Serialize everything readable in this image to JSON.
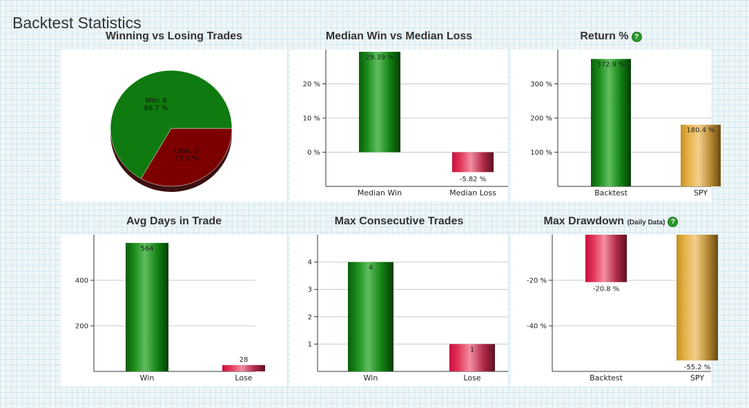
{
  "page_title": "Backtest Statistics",
  "help_glyph": "?",
  "chart_data": [
    {
      "id": "winlose",
      "type": "pie",
      "title": "Winning vs Losing Trades",
      "slices": [
        {
          "label": "Win: 6",
          "pct_label": "66.7 %",
          "value": 66.7,
          "color": "#0f7a0f"
        },
        {
          "label": "Lose: 3",
          "pct_label": "33.3 %",
          "value": 33.3,
          "color": "#7d0000"
        }
      ]
    },
    {
      "id": "median",
      "type": "bar",
      "title": "Median Win vs Median Loss",
      "categories": [
        "Median Win",
        "Median Loss"
      ],
      "values": [
        29.39,
        -5.82
      ],
      "labels": [
        "29.39 %",
        "-5.82 %"
      ],
      "ylim": [
        -10,
        30
      ],
      "yticks": [
        0,
        10,
        20
      ],
      "ytick_labels": [
        "0 %",
        "10 %",
        "20 %"
      ],
      "colors": [
        "green",
        "red"
      ]
    },
    {
      "id": "return",
      "type": "bar",
      "title": "Return %",
      "help": true,
      "categories": [
        "Backtest",
        "SPY"
      ],
      "values": [
        372.9,
        180.4
      ],
      "labels": [
        "372.9 %",
        "180.4 %"
      ],
      "ylim": [
        0,
        400
      ],
      "yticks": [
        100,
        200,
        300
      ],
      "ytick_labels": [
        "100 %",
        "200 %",
        "300 %"
      ],
      "colors": [
        "green",
        "gold"
      ]
    },
    {
      "id": "avgdays",
      "type": "bar",
      "title": "Avg Days in Trade",
      "categories": [
        "Win",
        "Lose"
      ],
      "values": [
        564,
        28
      ],
      "labels": [
        "564",
        "28"
      ],
      "ylim": [
        0,
        600
      ],
      "yticks": [
        200,
        400
      ],
      "ytick_labels": [
        "200",
        "400"
      ],
      "colors": [
        "green",
        "red"
      ]
    },
    {
      "id": "maxconsec",
      "type": "bar",
      "title": "Max Consecutive Trades",
      "categories": [
        "Win",
        "Lose"
      ],
      "values": [
        4,
        1
      ],
      "labels": [
        "4",
        "1"
      ],
      "ylim": [
        0,
        5
      ],
      "yticks": [
        1,
        2,
        3,
        4
      ],
      "ytick_labels": [
        "1",
        "2",
        "3",
        "4"
      ],
      "colors": [
        "green",
        "red"
      ]
    },
    {
      "id": "drawdown",
      "type": "bar",
      "title": "Max Drawdown",
      "title_suffix": "(Daily Data)",
      "help": true,
      "categories": [
        "Backtest",
        "SPY"
      ],
      "values": [
        -20.8,
        -55.2
      ],
      "labels": [
        "-20.8 %",
        "-55.2 %"
      ],
      "ylim": [
        -60,
        0
      ],
      "yticks": [
        -20,
        -40
      ],
      "ytick_labels": [
        "-20 %",
        "-40 %"
      ],
      "colors": [
        "red",
        "gold"
      ]
    }
  ]
}
